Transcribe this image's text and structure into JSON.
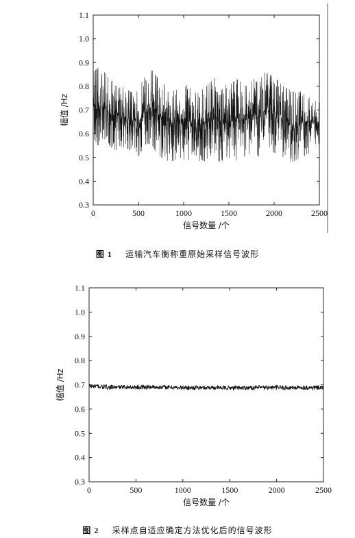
{
  "chart_data": [
    {
      "type": "line",
      "title": "",
      "xlabel": "信号数量 /个",
      "ylabel": "幅值 /Hz",
      "xlim": [
        0,
        2500
      ],
      "ylim": [
        0.3,
        1.1
      ],
      "xticks": [
        "0",
        "500",
        "1000",
        "1500",
        "2000",
        "2500"
      ],
      "yticks": [
        "0.3",
        "0.4",
        "0.5",
        "0.6",
        "0.7",
        "0.8",
        "0.9",
        "1.0",
        "1.1"
      ],
      "grid": false,
      "legend": "none",
      "series": [
        {
          "x": [
            0,
            50,
            100,
            150,
            200,
            250,
            300,
            350,
            400,
            450,
            500,
            550,
            600,
            650,
            700,
            750,
            800,
            850,
            900,
            950,
            1000,
            1050,
            1100,
            1150,
            1200,
            1250,
            1300,
            1350,
            1400,
            1450,
            1500,
            1550,
            1600,
            1650,
            1700,
            1750,
            1800,
            1850,
            1900,
            1950,
            2000,
            2050,
            2100,
            2150,
            2200,
            2250,
            2300,
            2350,
            2400,
            2450,
            2500
          ],
          "ymin": [
            0.58,
            0.55,
            0.56,
            0.57,
            0.54,
            0.53,
            0.55,
            0.54,
            0.53,
            0.55,
            0.5,
            0.54,
            0.56,
            0.55,
            0.52,
            0.5,
            0.49,
            0.48,
            0.49,
            0.5,
            0.49,
            0.48,
            0.49,
            0.48,
            0.49,
            0.48,
            0.49,
            0.5,
            0.48,
            0.49,
            0.5,
            0.48,
            0.49,
            0.5,
            0.51,
            0.52,
            0.51,
            0.5,
            0.52,
            0.53,
            0.52,
            0.51,
            0.5,
            0.49,
            0.48,
            0.49,
            0.5,
            0.51,
            0.52,
            0.55,
            0.54
          ],
          "ymax": [
            0.86,
            0.88,
            0.87,
            0.85,
            0.82,
            0.84,
            0.79,
            0.8,
            0.78,
            0.77,
            0.81,
            0.83,
            0.85,
            0.87,
            0.84,
            0.82,
            0.8,
            0.79,
            0.78,
            0.81,
            0.82,
            0.8,
            0.78,
            0.77,
            0.79,
            0.8,
            0.82,
            0.84,
            0.83,
            0.81,
            0.8,
            0.82,
            0.83,
            0.81,
            0.8,
            0.82,
            0.84,
            0.83,
            0.86,
            0.85,
            0.84,
            0.82,
            0.8,
            0.79,
            0.78,
            0.77,
            0.78,
            0.79,
            0.77,
            0.75,
            0.73
          ],
          "ymean": [
            0.72,
            0.7,
            0.71,
            0.7,
            0.68,
            0.69,
            0.67,
            0.67,
            0.66,
            0.66,
            0.65,
            0.68,
            0.71,
            0.72,
            0.69,
            0.67,
            0.66,
            0.64,
            0.64,
            0.66,
            0.66,
            0.65,
            0.64,
            0.63,
            0.64,
            0.64,
            0.65,
            0.67,
            0.66,
            0.65,
            0.65,
            0.65,
            0.66,
            0.66,
            0.66,
            0.67,
            0.68,
            0.67,
            0.69,
            0.69,
            0.68,
            0.67,
            0.65,
            0.64,
            0.63,
            0.63,
            0.64,
            0.65,
            0.65,
            0.65,
            0.64
          ]
        }
      ]
    },
    {
      "type": "line",
      "title": "",
      "xlabel": "信号数量 /个",
      "ylabel": "幅值 /Hz",
      "xlim": [
        0,
        2500
      ],
      "ylim": [
        0.3,
        1.1
      ],
      "xticks": [
        "0",
        "500",
        "1000",
        "1500",
        "2000",
        "2500"
      ],
      "yticks": [
        "0.3",
        "0.4",
        "0.5",
        "0.6",
        "0.7",
        "0.8",
        "0.9",
        "1.0",
        "1.1"
      ],
      "grid": false,
      "legend": "none",
      "series": [
        {
          "x": [
            0,
            100,
            200,
            300,
            400,
            500,
            600,
            700,
            800,
            900,
            1000,
            1100,
            1200,
            1300,
            1400,
            1500,
            1600,
            1700,
            1800,
            1900,
            2000,
            2100,
            2200,
            2300,
            2400,
            2500
          ],
          "ymin": [
            0.685,
            0.683,
            0.68,
            0.682,
            0.683,
            0.681,
            0.68,
            0.682,
            0.681,
            0.68,
            0.679,
            0.678,
            0.679,
            0.68,
            0.679,
            0.678,
            0.679,
            0.68,
            0.679,
            0.68,
            0.679,
            0.678,
            0.679,
            0.68,
            0.678,
            0.679
          ],
          "ymax": [
            0.705,
            0.703,
            0.7,
            0.698,
            0.699,
            0.7,
            0.701,
            0.7,
            0.699,
            0.698,
            0.697,
            0.698,
            0.697,
            0.698,
            0.696,
            0.697,
            0.698,
            0.697,
            0.698,
            0.699,
            0.7,
            0.699,
            0.697,
            0.698,
            0.699,
            0.697
          ],
          "ymean": [
            0.695,
            0.693,
            0.69,
            0.69,
            0.691,
            0.69,
            0.691,
            0.691,
            0.69,
            0.689,
            0.688,
            0.688,
            0.688,
            0.689,
            0.688,
            0.687,
            0.688,
            0.688,
            0.688,
            0.689,
            0.689,
            0.688,
            0.688,
            0.689,
            0.688,
            0.688
          ]
        }
      ]
    }
  ],
  "captions": [
    {
      "num": "图 1",
      "text": "运输汽车衡称重原始采样信号波形"
    },
    {
      "num": "图 2",
      "text": "采样点自适应确定方法优化后的信号波形"
    }
  ]
}
